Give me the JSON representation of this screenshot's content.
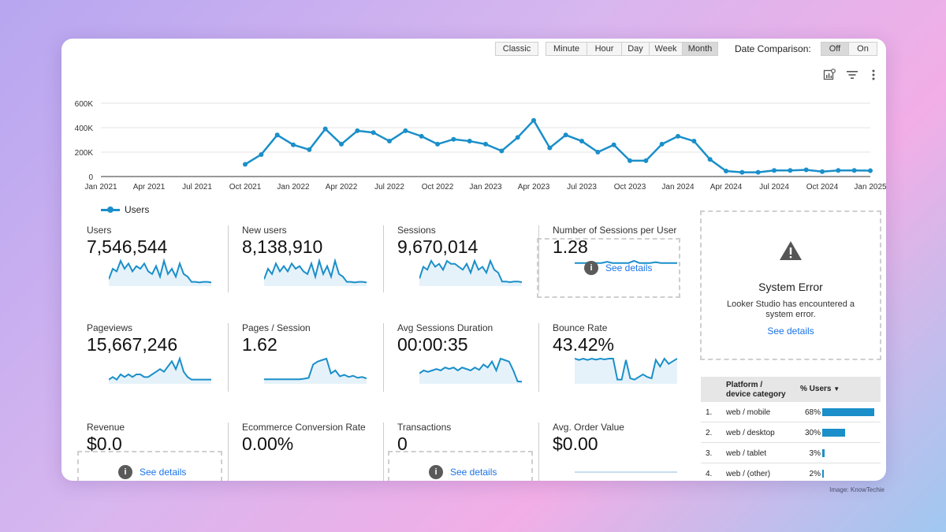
{
  "credit": "Image: KnowTechie",
  "toolbar": {
    "classic": "Classic",
    "granularity": [
      "Minute",
      "Hour",
      "Day",
      "Week",
      "Month"
    ],
    "active_granularity": "Month",
    "date_comparison_label": "Date Comparison:",
    "comparison": [
      "Off",
      "On"
    ],
    "active_comparison": "Off",
    "icons": [
      "chart-settings-icon",
      "filter-icon",
      "more-vert-icon"
    ]
  },
  "colors": {
    "series": "#1a8fc9",
    "link": "#1a73e8",
    "spark_fill": "#e6f2fa"
  },
  "chart_data": {
    "type": "line",
    "title": "",
    "xlabel": "",
    "ylabel": "",
    "y_ticks": [
      "600K",
      "400K",
      "200K",
      "0"
    ],
    "ylim": [
      0,
      600000
    ],
    "x_ticks": [
      "Jan 2021",
      "Apr 2021",
      "Jul 2021",
      "Oct 2021",
      "Jan 2022",
      "Apr 2022",
      "Jul 2022",
      "Oct 2022",
      "Jan 2023",
      "Apr 2023",
      "Jul 2023",
      "Oct 2023",
      "Jan 2024",
      "Apr 2024",
      "Jul 2024",
      "Oct 2024",
      "Jan 2025"
    ],
    "x_tick_month_index": [
      0,
      3,
      6,
      9,
      12,
      15,
      18,
      21,
      24,
      27,
      30,
      33,
      36,
      39,
      42,
      45,
      48
    ],
    "grid": true,
    "legend": "bottom-left",
    "series": [
      {
        "name": "Users",
        "month_index": [
          9,
          10,
          11,
          12,
          13,
          14,
          15,
          16,
          17,
          18,
          19,
          20,
          21,
          22,
          23,
          24,
          25,
          26,
          27,
          28,
          29,
          30,
          31,
          32,
          33,
          34,
          35,
          36,
          37,
          38,
          39,
          40,
          41,
          42,
          43,
          44,
          45,
          46,
          47,
          48
        ],
        "values": [
          100000,
          180000,
          340000,
          260000,
          220000,
          390000,
          265000,
          375000,
          360000,
          290000,
          375000,
          330000,
          265000,
          305000,
          290000,
          265000,
          210000,
          320000,
          460000,
          235000,
          340000,
          290000,
          200000,
          260000,
          130000,
          130000,
          265000,
          330000,
          290000,
          140000,
          45000,
          35000,
          35000,
          50000,
          50000,
          55000,
          40000,
          50000,
          50000,
          48000
        ]
      }
    ]
  },
  "legend_label": "Users",
  "metrics": [
    {
      "label": "Users",
      "value": "7,546,544",
      "spark": [
        2,
        6,
        5,
        9,
        6,
        8,
        5,
        7,
        6,
        8,
        5,
        4,
        7,
        3,
        9,
        4,
        6,
        3,
        8,
        4,
        3,
        1,
        1,
        0.8,
        1,
        1,
        0.8
      ],
      "fill": true
    },
    {
      "label": "New users",
      "value": "8,138,910",
      "spark": [
        2,
        6,
        4,
        8,
        5,
        7,
        5,
        8,
        6,
        7,
        5,
        4,
        8,
        3,
        9,
        4,
        7,
        3,
        9,
        4,
        3,
        1,
        1,
        0.8,
        1,
        1,
        0.8
      ],
      "fill": true
    },
    {
      "label": "Sessions",
      "value": "9,670,014",
      "spark": [
        2,
        6,
        5,
        8,
        6,
        7,
        5,
        8,
        7,
        7,
        6,
        5,
        7,
        4,
        8,
        5,
        6,
        4,
        8,
        5,
        4,
        1,
        1,
        0.8,
        1,
        1,
        0.8
      ],
      "fill": true
    },
    {
      "label": "Number of Sessions per User",
      "value": "1.28",
      "spark": [
        5,
        5,
        5,
        5.2,
        5,
        5,
        5.3,
        5,
        5,
        5,
        5,
        5.5,
        5,
        5,
        5,
        5.2,
        5,
        5,
        5,
        5
      ],
      "fill": false,
      "see_details": "See details"
    },
    {
      "label": "Pageviews",
      "value": "15,667,246",
      "spark": [
        1,
        2,
        1,
        3,
        2,
        3,
        2,
        3,
        3,
        2,
        2,
        3,
        4,
        5,
        4,
        6,
        8,
        5,
        9,
        4,
        2,
        1,
        1,
        1,
        1,
        1,
        1
      ],
      "fill": true
    },
    {
      "label": "Pages / Session",
      "value": "1.62",
      "spark": [
        1,
        1,
        1,
        1,
        1,
        1,
        1,
        1,
        1,
        1.2,
        1.5,
        6,
        7,
        7.5,
        8,
        3,
        4,
        2,
        2.5,
        1.8,
        2.2,
        1.5,
        1.8,
        1.3
      ],
      "fill": true
    },
    {
      "label": "Avg Sessions Duration",
      "value": "00:00:35",
      "spark": [
        3,
        4,
        3.5,
        4,
        4.5,
        4,
        5,
        4.5,
        5,
        4,
        5,
        4.5,
        4,
        5,
        4.2,
        6,
        5,
        7,
        4,
        8,
        7.5,
        7,
        4,
        0.3,
        0.2
      ],
      "fill": true
    },
    {
      "label": "Bounce Rate",
      "value": "43.42%",
      "spark": [
        9,
        8.5,
        9,
        8.5,
        9,
        8.6,
        9,
        8.7,
        9,
        9,
        1,
        1,
        8.5,
        1.5,
        1,
        2,
        3,
        2,
        1.5,
        8.5,
        6,
        9,
        7,
        8,
        9
      ],
      "fill": true
    },
    {
      "label": "Revenue",
      "value": "$0.0",
      "see_details": "See details"
    },
    {
      "label": "Ecommerce Conversion Rate",
      "value": "0.00%"
    },
    {
      "label": "Transactions",
      "value": "0",
      "see_details": "See details"
    },
    {
      "label": "Avg. Order Value",
      "value": "$0.00",
      "flatline": true
    }
  ],
  "system_error": {
    "title": "System Error",
    "message": "Looker Studio has encountered a system error.",
    "link": "See details"
  },
  "table": {
    "header_dim": "Platform / device category",
    "header_metric": "% Users",
    "sort_icon": "▼",
    "rows": [
      {
        "rank": "1.",
        "label": "web / mobile",
        "pct": "68%",
        "value": 68
      },
      {
        "rank": "2.",
        "label": "web / desktop",
        "pct": "30%",
        "value": 30
      },
      {
        "rank": "3.",
        "label": "web / tablet",
        "pct": "3%",
        "value": 3
      },
      {
        "rank": "4.",
        "label": "web / (other)",
        "pct": "2%",
        "value": 2
      }
    ]
  }
}
